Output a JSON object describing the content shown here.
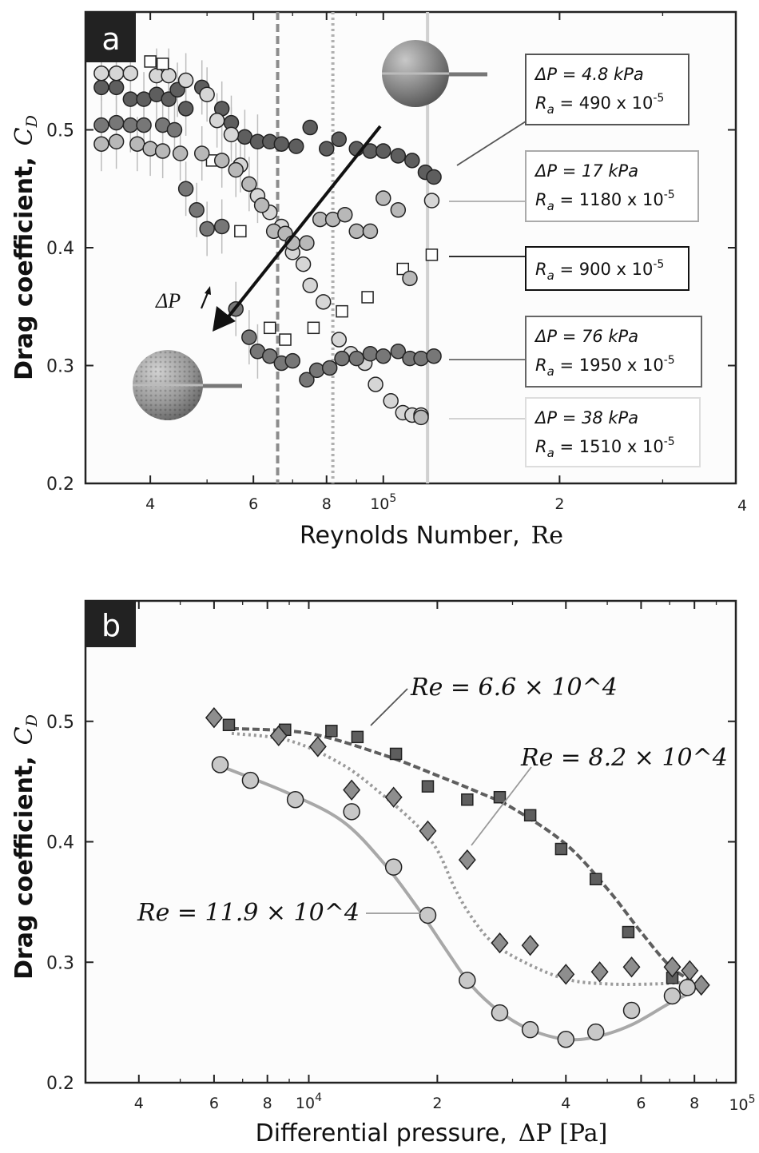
{
  "chart_data": [
    {
      "type": "scatter",
      "panel_label": "a",
      "xlabel_text": "Reynolds Number,",
      "xlabel_symbol": "Re",
      "ylabel_text": "Drag coefficient,",
      "ylabel_symbol": "C",
      "ylabel_sub": "D",
      "x_scale": "log",
      "xlim": [
        31000,
        400000
      ],
      "ylim": [
        0.2,
        0.6
      ],
      "x_ticks": [
        {
          "v": 40000,
          "label": "4"
        },
        {
          "v": 60000,
          "label": "6"
        },
        {
          "v": 80000,
          "label": "8"
        },
        {
          "v": 100000,
          "label": "10",
          "sup": "5"
        },
        {
          "v": 200000,
          "label": "2"
        },
        {
          "v": 400000,
          "label": "4"
        }
      ],
      "y_ticks": [
        {
          "v": 0.2,
          "label": "0.2"
        },
        {
          "v": 0.3,
          "label": "0.3"
        },
        {
          "v": 0.4,
          "label": "0.4"
        },
        {
          "v": 0.5,
          "label": "0.5"
        }
      ],
      "grid": false,
      "vertical_lines": [
        {
          "x": 66000,
          "color": "#8c8c8c",
          "style": "dashed"
        },
        {
          "x": 82000,
          "color": "#b0b0b0",
          "style": "dotted"
        },
        {
          "x": 119000,
          "color": "#d0d0d0",
          "style": "solid"
        }
      ],
      "arrow_label": "ΔP",
      "series": [
        {
          "marker": "circle",
          "fill": "#5e5e5e",
          "label_lines": [
            "ΔP = 4.8 kPa",
            "R_a = 490 x 10^-5"
          ],
          "points": [
            [
              33000,
              0.536
            ],
            [
              35000,
              0.536
            ],
            [
              37000,
              0.526
            ],
            [
              39000,
              0.526
            ],
            [
              41000,
              0.53
            ],
            [
              43000,
              0.526
            ],
            [
              44500,
              0.534
            ],
            [
              46000,
              0.518
            ],
            [
              49000,
              0.536
            ],
            [
              53000,
              0.518
            ],
            [
              55000,
              0.506
            ],
            [
              58000,
              0.494
            ],
            [
              61000,
              0.49
            ],
            [
              64000,
              0.49
            ],
            [
              67000,
              0.488
            ],
            [
              71000,
              0.486
            ],
            [
              75000,
              0.502
            ],
            [
              80000,
              0.484
            ],
            [
              84000,
              0.492
            ],
            [
              90000,
              0.484
            ],
            [
              95000,
              0.482
            ],
            [
              100000,
              0.482
            ],
            [
              106000,
              0.478
            ],
            [
              112000,
              0.474
            ],
            [
              118000,
              0.464
            ],
            [
              122000,
              0.46
            ]
          ]
        },
        {
          "marker": "circle",
          "fill": "#d6d6d6",
          "label_lines": [
            "ΔP = 17 kPa",
            "R_a = 1180 x 10^-5"
          ],
          "points": [
            [
              33000,
              0.548
            ],
            [
              35000,
              0.548
            ],
            [
              37000,
              0.548
            ],
            [
              41000,
              0.546
            ],
            [
              43000,
              0.546
            ],
            [
              46000,
              0.542
            ],
            [
              50000,
              0.53
            ],
            [
              52000,
              0.508
            ],
            [
              55000,
              0.496
            ],
            [
              57000,
              0.47
            ],
            [
              61000,
              0.444
            ],
            [
              64000,
              0.43
            ],
            [
              67000,
              0.418
            ],
            [
              70000,
              0.396
            ],
            [
              73000,
              0.386
            ],
            [
              75000,
              0.368
            ],
            [
              79000,
              0.354
            ],
            [
              84000,
              0.322
            ],
            [
              88000,
              0.31
            ],
            [
              93000,
              0.302
            ],
            [
              97000,
              0.284
            ],
            [
              103000,
              0.27
            ],
            [
              108000,
              0.26
            ],
            [
              112000,
              0.258
            ],
            [
              116000,
              0.258
            ],
            [
              121000,
              0.44
            ]
          ]
        },
        {
          "marker": "square",
          "fill": "#ffffff",
          "label_lines": [
            "R_a = 900 x 10^-5"
          ],
          "points": [
            [
              40000,
              0.558
            ],
            [
              42000,
              0.556
            ],
            [
              51000,
              0.474
            ],
            [
              57000,
              0.414
            ],
            [
              64000,
              0.332
            ],
            [
              68000,
              0.322
            ],
            [
              76000,
              0.332
            ],
            [
              85000,
              0.346
            ],
            [
              94000,
              0.358
            ],
            [
              108000,
              0.382
            ],
            [
              121000,
              0.394
            ]
          ]
        },
        {
          "marker": "circle",
          "fill": "#777777",
          "label_lines": [
            "ΔP = 76 kPa",
            "R_a = 1950 x 10^-5"
          ],
          "points": [
            [
              33000,
              0.504
            ],
            [
              35000,
              0.506
            ],
            [
              37000,
              0.504
            ],
            [
              39000,
              0.504
            ],
            [
              42000,
              0.504
            ],
            [
              44000,
              0.5
            ],
            [
              46000,
              0.45
            ],
            [
              48000,
              0.432
            ],
            [
              50000,
              0.416
            ],
            [
              53000,
              0.418
            ],
            [
              56000,
              0.348
            ],
            [
              59000,
              0.324
            ],
            [
              61000,
              0.312
            ],
            [
              64000,
              0.308
            ],
            [
              67000,
              0.302
            ],
            [
              70000,
              0.304
            ],
            [
              74000,
              0.288
            ],
            [
              77000,
              0.296
            ],
            [
              81000,
              0.298
            ],
            [
              85000,
              0.306
            ],
            [
              90000,
              0.306
            ],
            [
              95000,
              0.31
            ],
            [
              100000,
              0.308
            ],
            [
              106000,
              0.312
            ],
            [
              111000,
              0.306
            ],
            [
              116000,
              0.306
            ],
            [
              122000,
              0.308
            ]
          ]
        },
        {
          "marker": "circle",
          "fill": "#b8b8b8",
          "label_lines": [
            "ΔP = 38 kPa",
            "R_a = 1510 x 10^-5"
          ],
          "points": [
            [
              33000,
              0.488
            ],
            [
              35000,
              0.49
            ],
            [
              38000,
              0.488
            ],
            [
              40000,
              0.484
            ],
            [
              42000,
              0.482
            ],
            [
              45000,
              0.48
            ],
            [
              49000,
              0.48
            ],
            [
              53000,
              0.474
            ],
            [
              56000,
              0.466
            ],
            [
              59000,
              0.454
            ],
            [
              62000,
              0.436
            ],
            [
              65000,
              0.414
            ],
            [
              68000,
              0.412
            ],
            [
              70000,
              0.404
            ],
            [
              74000,
              0.404
            ],
            [
              78000,
              0.424
            ],
            [
              82000,
              0.424
            ],
            [
              86000,
              0.428
            ],
            [
              90000,
              0.414
            ],
            [
              95000,
              0.414
            ],
            [
              100000,
              0.442
            ],
            [
              106000,
              0.432
            ],
            [
              111000,
              0.374
            ],
            [
              116000,
              0.256
            ]
          ]
        }
      ]
    },
    {
      "type": "scatter",
      "panel_label": "b",
      "xlabel_text": "Differential pressure,",
      "xlabel_symbol": "ΔP [Pa]",
      "ylabel_text": "Drag coefficient,",
      "ylabel_symbol": "C",
      "ylabel_sub": "D",
      "x_scale": "log",
      "xlim": [
        3000,
        100000
      ],
      "ylim": [
        0.2,
        0.6
      ],
      "x_ticks": [
        {
          "v": 4000,
          "label": "4"
        },
        {
          "v": 6000,
          "label": "6"
        },
        {
          "v": 8000,
          "label": "8"
        },
        {
          "v": 10000,
          "label": "10",
          "sup": "4"
        },
        {
          "v": 20000,
          "label": "2"
        },
        {
          "v": 40000,
          "label": "4"
        },
        {
          "v": 60000,
          "label": "6"
        },
        {
          "v": 80000,
          "label": "8"
        },
        {
          "v": 100000,
          "label": "10",
          "sup": "5"
        }
      ],
      "y_ticks": [
        {
          "v": 0.2,
          "label": "0.2"
        },
        {
          "v": 0.3,
          "label": "0.3"
        },
        {
          "v": 0.4,
          "label": "0.4"
        },
        {
          "v": 0.5,
          "label": "0.5"
        }
      ],
      "grid": false,
      "series": [
        {
          "marker": "square",
          "fill": "#5e5e5e",
          "line_style": "dashed",
          "line_color": "#5e5e5e",
          "label": "Re = 6.6 × 10^4",
          "points": [
            [
              6500,
              0.497
            ],
            [
              8800,
              0.493
            ],
            [
              11300,
              0.492
            ],
            [
              13000,
              0.487
            ],
            [
              16000,
              0.473
            ],
            [
              19000,
              0.446
            ],
            [
              23500,
              0.435
            ],
            [
              28000,
              0.437
            ],
            [
              33000,
              0.422
            ],
            [
              39000,
              0.394
            ],
            [
              47000,
              0.369
            ],
            [
              56000,
              0.325
            ],
            [
              71000,
              0.287
            ]
          ],
          "fit": [
            [
              6600,
              0.494
            ],
            [
              10000,
              0.49
            ],
            [
              15000,
              0.472
            ],
            [
              20000,
              0.455
            ],
            [
              25000,
              0.441
            ],
            [
              30000,
              0.428
            ],
            [
              40000,
              0.398
            ],
            [
              50000,
              0.361
            ],
            [
              60000,
              0.325
            ],
            [
              70000,
              0.297
            ],
            [
              80000,
              0.283
            ]
          ]
        },
        {
          "marker": "diamond",
          "fill": "#8e8e8e",
          "line_style": "dotted",
          "line_color": "#9a9a9a",
          "label": "Re = 8.2 × 10^4",
          "points": [
            [
              6000,
              0.503
            ],
            [
              8500,
              0.488
            ],
            [
              10500,
              0.479
            ],
            [
              12600,
              0.443
            ],
            [
              15800,
              0.437
            ],
            [
              19000,
              0.409
            ],
            [
              23500,
              0.385
            ],
            [
              28000,
              0.316
            ],
            [
              33000,
              0.314
            ],
            [
              40000,
              0.29
            ],
            [
              48000,
              0.292
            ],
            [
              57000,
              0.296
            ],
            [
              71000,
              0.296
            ],
            [
              78000,
              0.293
            ],
            [
              83000,
              0.281
            ]
          ],
          "fit": [
            [
              6600,
              0.49
            ],
            [
              9000,
              0.484
            ],
            [
              12000,
              0.464
            ],
            [
              15000,
              0.438
            ],
            [
              18000,
              0.413
            ],
            [
              20000,
              0.393
            ],
            [
              22000,
              0.361
            ],
            [
              24000,
              0.338
            ],
            [
              27000,
              0.316
            ],
            [
              32000,
              0.3
            ],
            [
              40000,
              0.286
            ],
            [
              50000,
              0.282
            ],
            [
              65000,
              0.282
            ],
            [
              80000,
              0.284
            ]
          ]
        },
        {
          "marker": "circle",
          "fill": "#c8c8c8",
          "line_style": "solid",
          "line_color": "#a8a8a8",
          "label": "Re = 11.9 × 10^4",
          "points": [
            [
              6200,
              0.464
            ],
            [
              7300,
              0.451
            ],
            [
              9300,
              0.435
            ],
            [
              12600,
              0.425
            ],
            [
              15800,
              0.379
            ],
            [
              19000,
              0.339
            ],
            [
              23500,
              0.285
            ],
            [
              28000,
              0.258
            ],
            [
              33000,
              0.244
            ],
            [
              40000,
              0.236
            ],
            [
              47000,
              0.242
            ],
            [
              57000,
              0.26
            ],
            [
              71000,
              0.272
            ],
            [
              77000,
              0.279
            ]
          ],
          "fit": [
            [
              6200,
              0.463
            ],
            [
              9000,
              0.44
            ],
            [
              12000,
              0.417
            ],
            [
              15000,
              0.382
            ],
            [
              18000,
              0.345
            ],
            [
              21000,
              0.31
            ],
            [
              24000,
              0.281
            ],
            [
              28000,
              0.259
            ],
            [
              33000,
              0.244
            ],
            [
              40000,
              0.236
            ],
            [
              47000,
              0.238
            ],
            [
              57000,
              0.248
            ],
            [
              70000,
              0.266
            ],
            [
              80000,
              0.276
            ]
          ]
        }
      ]
    }
  ]
}
